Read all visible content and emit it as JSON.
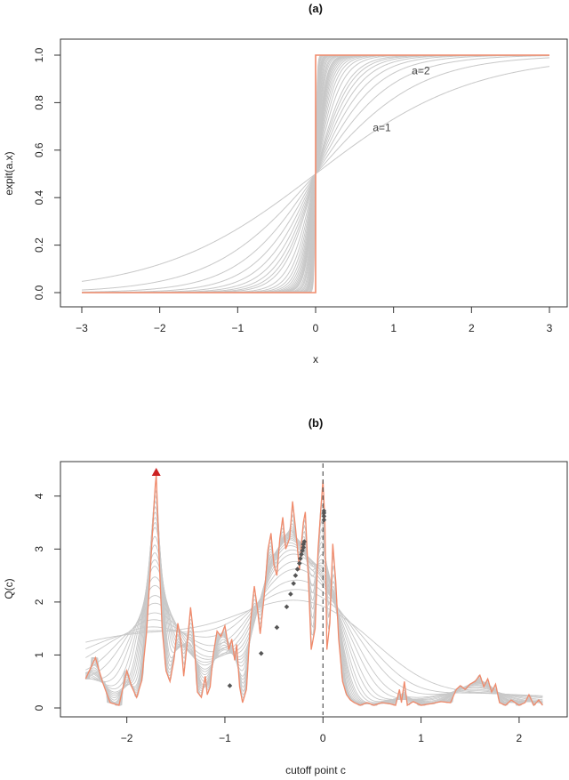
{
  "chart_data": [
    {
      "type": "line",
      "panel": "(a)",
      "xlabel": "x",
      "ylabel": "expit(a.x)",
      "xlim": [
        -3,
        3
      ],
      "ylim": [
        0,
        1
      ],
      "xticks": [
        "−3",
        "−2",
        "−1",
        "0",
        "1",
        "2",
        "3"
      ],
      "yticks": [
        "0.0",
        "0.2",
        "0.4",
        "0.6",
        "0.8",
        "1.0"
      ],
      "grid": false,
      "curve_function": "expit(a·x)",
      "a_values": [
        1,
        1.5,
        2,
        2.5,
        3,
        3.5,
        4,
        4.5,
        5,
        6,
        7,
        8,
        9,
        10,
        11,
        12,
        13,
        14,
        15,
        16,
        18,
        20,
        22,
        25,
        28,
        32,
        36,
        40,
        45,
        50,
        60,
        70,
        80,
        100
      ],
      "limit_curve": "step function at x = 0",
      "annotations": [
        {
          "text": "a=2",
          "x": 1.35,
          "y": 0.92
        },
        {
          "text": "a=1",
          "x": 0.85,
          "y": 0.68
        }
      ],
      "colors": {
        "curves": "#c8c8c8",
        "limit": "#f08a6b"
      }
    },
    {
      "type": "line",
      "panel": "(b)",
      "xlabel": "cutoff point c",
      "ylabel": "Q(c)",
      "xlim": [
        -2.45,
        2.3
      ],
      "ylim": [
        0,
        4.5
      ],
      "xticks": [
        "−2",
        "−1",
        "0",
        "1",
        "2"
      ],
      "yticks": [
        "0",
        "1",
        "2",
        "3",
        "4"
      ],
      "grid": false,
      "vline_x": 0,
      "maximum_marker": {
        "x": -1.7,
        "y": 4.45,
        "shape": "triangle"
      },
      "optimum_points": [
        {
          "x": -0.95,
          "y": 0.42
        },
        {
          "x": -0.63,
          "y": 1.03
        },
        {
          "x": -0.47,
          "y": 1.52
        },
        {
          "x": -0.37,
          "y": 1.91
        },
        {
          "x": -0.33,
          "y": 2.15
        },
        {
          "x": -0.3,
          "y": 2.35
        },
        {
          "x": -0.28,
          "y": 2.5
        },
        {
          "x": -0.26,
          "y": 2.62
        },
        {
          "x": -0.24,
          "y": 2.73
        },
        {
          "x": -0.23,
          "y": 2.82
        },
        {
          "x": -0.22,
          "y": 2.9
        },
        {
          "x": -0.21,
          "y": 2.97
        },
        {
          "x": -0.2,
          "y": 3.03
        },
        {
          "x": -0.2,
          "y": 3.09
        },
        {
          "x": -0.19,
          "y": 3.14
        },
        {
          "x": 0.01,
          "y": 3.55
        },
        {
          "x": 0.01,
          "y": 3.62
        },
        {
          "x": 0.01,
          "y": 3.68
        },
        {
          "x": 0.01,
          "y": 3.72
        }
      ],
      "hard_threshold_series": {
        "x": [
          -2.42,
          -2.32,
          -2.25,
          -2.17,
          -2.08,
          -2.0,
          -1.95,
          -1.9,
          -1.85,
          -1.8,
          -1.76,
          -1.73,
          -1.71,
          -1.7,
          -1.69,
          -1.67,
          -1.64,
          -1.6,
          -1.56,
          -1.52,
          -1.48,
          -1.45,
          -1.42,
          -1.38,
          -1.35,
          -1.32,
          -1.28,
          -1.24,
          -1.2,
          -1.18,
          -1.15,
          -1.12,
          -1.08,
          -1.04,
          -1.0,
          -0.96,
          -0.93,
          -0.9,
          -0.88,
          -0.85,
          -0.82,
          -0.78,
          -0.74,
          -0.7,
          -0.67,
          -0.64,
          -0.6,
          -0.56,
          -0.53,
          -0.5,
          -0.47,
          -0.44,
          -0.41,
          -0.38,
          -0.34,
          -0.31,
          -0.28,
          -0.26,
          -0.24,
          -0.22,
          -0.2,
          -0.18,
          -0.15,
          -0.12,
          -0.08,
          -0.05,
          -0.02,
          0.0,
          0.02,
          0.04,
          0.07,
          0.1,
          0.13,
          0.16,
          0.2,
          0.24,
          0.28,
          0.32,
          0.38,
          0.45,
          0.52,
          0.6,
          0.68,
          0.74,
          0.78,
          0.8,
          0.83,
          0.86,
          0.92,
          1.0,
          1.1,
          1.2,
          1.3,
          1.36,
          1.4,
          1.45,
          1.5,
          1.55,
          1.6,
          1.64,
          1.68,
          1.72,
          1.76,
          1.8,
          1.86,
          1.92,
          2.0,
          2.06,
          2.1,
          2.15,
          2.2,
          2.24
        ],
        "y": [
          0.55,
          0.95,
          0.5,
          0.1,
          0.05,
          0.7,
          0.4,
          0.2,
          0.5,
          1.4,
          2.6,
          3.6,
          4.2,
          4.4,
          3.9,
          2.8,
          1.5,
          0.7,
          0.5,
          0.9,
          1.6,
          1.3,
          0.6,
          1.3,
          1.9,
          1.4,
          0.3,
          0.2,
          0.6,
          0.25,
          0.4,
          1.0,
          1.45,
          1.35,
          1.55,
          1.1,
          1.3,
          0.9,
          1.2,
          0.4,
          0.1,
          0.35,
          1.6,
          2.3,
          1.9,
          1.4,
          2.1,
          3.0,
          3.3,
          2.7,
          2.5,
          3.2,
          3.6,
          3.0,
          3.2,
          3.9,
          3.4,
          3.0,
          2.6,
          3.1,
          3.5,
          3.7,
          2.5,
          1.1,
          1.5,
          3.0,
          3.8,
          4.3,
          3.5,
          1.1,
          1.6,
          3.1,
          2.4,
          1.3,
          0.5,
          0.25,
          0.15,
          0.1,
          0.05,
          0.1,
          0.05,
          0.1,
          0.08,
          0.05,
          0.35,
          0.1,
          0.5,
          0.05,
          0.12,
          0.05,
          0.08,
          0.12,
          0.1,
          0.35,
          0.42,
          0.35,
          0.45,
          0.5,
          0.62,
          0.4,
          0.55,
          0.3,
          0.45,
          0.1,
          0.05,
          0.15,
          0.05,
          0.1,
          0.25,
          0.05,
          0.15,
          0.05
        ]
      },
      "colors": {
        "curves": "#c8c8c8",
        "hard": "#f08a6b",
        "points": "#555555",
        "marker": "#cc2222"
      }
    }
  ],
  "panels": [
    {
      "title": "(a)"
    },
    {
      "title": "(b)"
    }
  ]
}
